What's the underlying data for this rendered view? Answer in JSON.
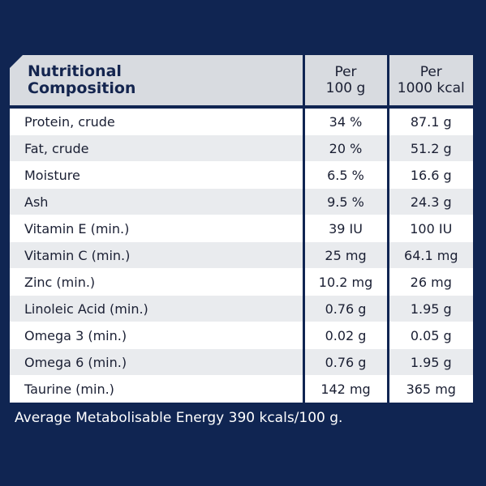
{
  "table": {
    "header": {
      "name_line1": "Nutritional",
      "name_line2": "Composition",
      "col2_line1": "Per",
      "col2_line2": "100 g",
      "col3_line1": "Per",
      "col3_line2": "1000 kcal"
    },
    "rows": [
      {
        "name": "Protein, crude",
        "per100g": "34 %",
        "per1000kcal": "87.1 g"
      },
      {
        "name": "Fat, crude",
        "per100g": "20 %",
        "per1000kcal": "51.2 g"
      },
      {
        "name": "Moisture",
        "per100g": "6.5 %",
        "per1000kcal": "16.6 g"
      },
      {
        "name": "Ash",
        "per100g": "9.5 %",
        "per1000kcal": "24.3 g"
      },
      {
        "name": "Vitamin E (min.)",
        "per100g": "39 IU",
        "per1000kcal": "100 IU"
      },
      {
        "name": "Vitamin C (min.)",
        "per100g": "25 mg",
        "per1000kcal": "64.1 mg"
      },
      {
        "name": "Zinc (min.)",
        "per100g": "10.2 mg",
        "per1000kcal": "26 mg"
      },
      {
        "name": "Linoleic Acid (min.)",
        "per100g": "0.76 g",
        "per1000kcal": "1.95 g"
      },
      {
        "name": "Omega 3 (min.)",
        "per100g": "0.02 g",
        "per1000kcal": "0.05 g"
      },
      {
        "name": "Omega 6 (min.)",
        "per100g": "0.76 g",
        "per1000kcal": "1.95 g"
      },
      {
        "name": "Taurine (min.)",
        "per100g": "142 mg",
        "per1000kcal": "365 mg"
      }
    ]
  },
  "footer": "Average Metabolisable Energy 390 kcals/100 g.",
  "colors": {
    "background": "#102552",
    "header_bg": "#d8dbe0",
    "row_alt": "#e9ebee",
    "row": "#ffffff"
  }
}
